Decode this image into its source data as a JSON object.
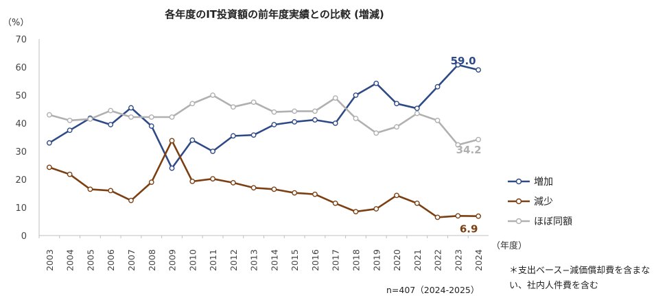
{
  "chart_data": {
    "type": "line",
    "title": "各年度のIT投資額の前年度実績との比較 (増減)",
    "ylabel": "（%）",
    "xlabel": "（年度）",
    "ylim": [
      0,
      70
    ],
    "yticks": [
      0,
      10,
      20,
      30,
      40,
      50,
      60,
      70
    ],
    "grid": false,
    "legend_position": "right",
    "categories": [
      "2003",
      "2004",
      "2005",
      "2006",
      "2007",
      "2008",
      "2009",
      "2010",
      "2011",
      "2012",
      "2013",
      "2014",
      "2015",
      "2016",
      "2017",
      "2018",
      "2019",
      "2020",
      "2021",
      "2022",
      "2023",
      "2024"
    ],
    "series": [
      {
        "name": "増加",
        "color": "#2e4a86",
        "values": [
          33.0,
          37.5,
          41.8,
          39.5,
          45.5,
          39.0,
          24.0,
          34.0,
          30.0,
          35.5,
          35.8,
          39.5,
          40.5,
          41.2,
          40.0,
          50.0,
          54.2,
          47.0,
          45.3,
          53.0,
          60.8,
          59.0
        ],
        "end_label": "59.0"
      },
      {
        "name": "減少",
        "color": "#7b3f12",
        "values": [
          24.3,
          21.8,
          16.5,
          16.0,
          12.5,
          19.0,
          33.8,
          19.3,
          20.2,
          18.8,
          17.0,
          16.5,
          15.2,
          14.7,
          11.5,
          8.5,
          9.5,
          14.3,
          11.5,
          6.5,
          7.0,
          6.9
        ],
        "end_label": "6.9"
      },
      {
        "name": "ほぼ同額",
        "color": "#b0b0b0",
        "values": [
          43.0,
          41.0,
          41.5,
          44.5,
          42.2,
          42.2,
          42.2,
          47.0,
          50.0,
          45.8,
          47.5,
          44.0,
          44.3,
          44.3,
          49.0,
          41.7,
          36.5,
          38.7,
          43.5,
          41.0,
          32.3,
          34.2
        ],
        "end_label": "34.2"
      }
    ]
  },
  "note": "＊支出ベース−減価償却費を含まない、社内人件費を含む",
  "sample": "n=407（2024-2025）"
}
